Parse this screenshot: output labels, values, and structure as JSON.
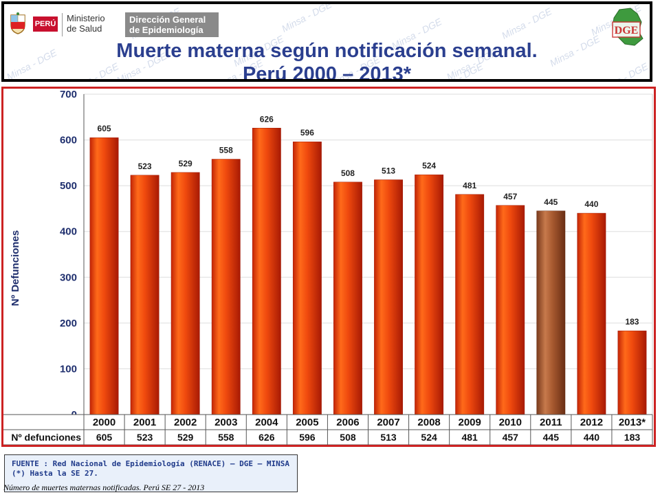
{
  "header": {
    "logo_peru": "PERÚ",
    "logo_ministerio_line1": "Ministerio",
    "logo_ministerio_line2": "de Salud",
    "logo_dge_line1": "Dirección General",
    "logo_dge_line2": "de Epidemiología",
    "watermark": "Minsa - DGE",
    "title_line1": "Muerte materna según notificación semanal.",
    "title_line2": "Perú 2000 – 2013*"
  },
  "colors": {
    "bar_main": "#e83a0c",
    "bar_highlight": "#9b5530",
    "axis_text": "#1f2f6e",
    "grid": "#dddddd",
    "frame": "#cc2222",
    "title": "#2b3f8f"
  },
  "chart_data": {
    "type": "bar",
    "ylabel": "Nº Defunciones",
    "ylim": [
      0,
      700
    ],
    "yticks": [
      0,
      100,
      200,
      300,
      400,
      500,
      600,
      700
    ],
    "categories": [
      "2000",
      "2001",
      "2002",
      "2003",
      "2004",
      "2005",
      "2006",
      "2007",
      "2008",
      "2009",
      "2010",
      "2011",
      "2012",
      "2013*"
    ],
    "values": [
      605,
      523,
      529,
      558,
      626,
      596,
      508,
      513,
      524,
      481,
      457,
      445,
      440,
      183
    ],
    "highlight_index": 11,
    "grid": true,
    "table_row_label": "Nº defunciones"
  },
  "footer": {
    "source_line1": "FUENTE : Red Nacional de Epidemiología (RENACE) – DGE – MINSA",
    "source_line2": "(*) Hasta la SE 27.",
    "caption": "Número de muertes maternas notificadas. Perú SE 27 - 2013"
  }
}
